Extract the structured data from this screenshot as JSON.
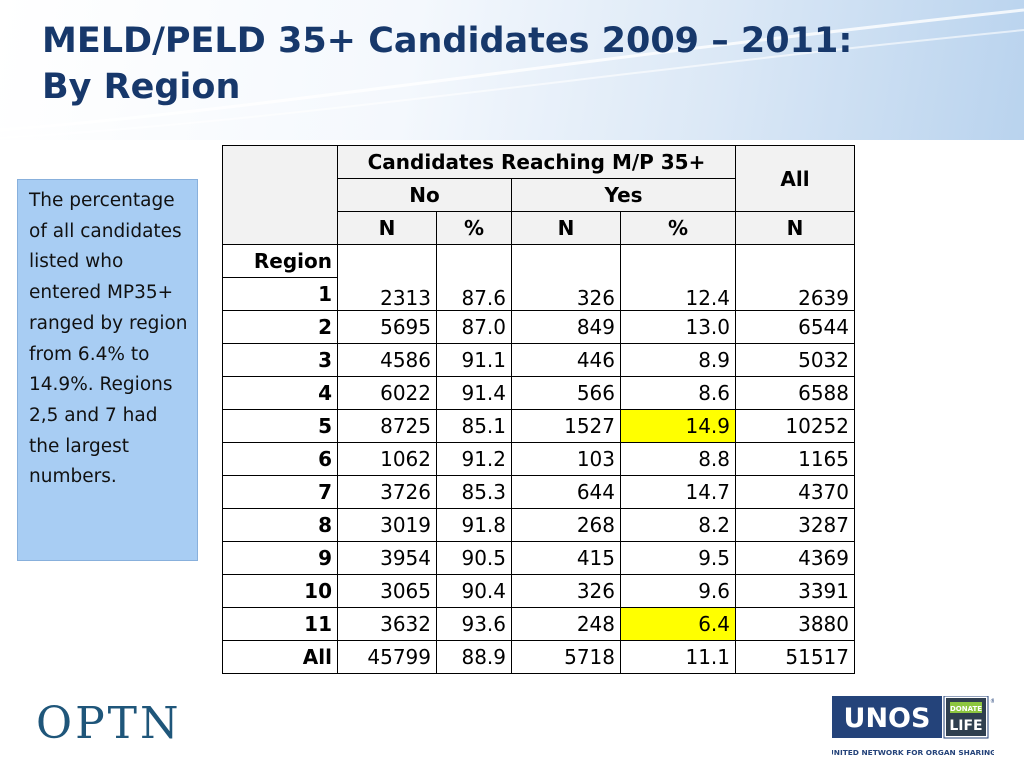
{
  "title": {
    "line1": "MELD/PELD 35+ Candidates 2009 – 2011:",
    "line2": "By Region"
  },
  "note": "The percentage of all candidates listed who entered MP35+ ranged by region from 6.4%  to 14.9%. Regions 2,5 and 7 had the largest numbers.",
  "table": {
    "header_group": "Candidates Reaching M/P 35+",
    "header_all": "All",
    "header_no": "No",
    "header_yes": "Yes",
    "col_n": "N",
    "col_pct": "%",
    "region_label": "Region",
    "rows": [
      {
        "region": "1",
        "no_n": "2313",
        "no_pct": "87.6",
        "yes_n": "326",
        "yes_pct": "12.4",
        "all_n": "2639"
      },
      {
        "region": "2",
        "no_n": "5695",
        "no_pct": "87.0",
        "yes_n": "849",
        "yes_pct": "13.0",
        "all_n": "6544"
      },
      {
        "region": "3",
        "no_n": "4586",
        "no_pct": "91.1",
        "yes_n": "446",
        "yes_pct": "8.9",
        "all_n": "5032"
      },
      {
        "region": "4",
        "no_n": "6022",
        "no_pct": "91.4",
        "yes_n": "566",
        "yes_pct": "8.6",
        "all_n": "6588"
      },
      {
        "region": "5",
        "no_n": "8725",
        "no_pct": "85.1",
        "yes_n": "1527",
        "yes_pct": "14.9",
        "all_n": "10252",
        "highlight": true
      },
      {
        "region": "6",
        "no_n": "1062",
        "no_pct": "91.2",
        "yes_n": "103",
        "yes_pct": "8.8",
        "all_n": "1165"
      },
      {
        "region": "7",
        "no_n": "3726",
        "no_pct": "85.3",
        "yes_n": "644",
        "yes_pct": "14.7",
        "all_n": "4370"
      },
      {
        "region": "8",
        "no_n": "3019",
        "no_pct": "91.8",
        "yes_n": "268",
        "yes_pct": "8.2",
        "all_n": "3287"
      },
      {
        "region": "9",
        "no_n": "3954",
        "no_pct": "90.5",
        "yes_n": "415",
        "yes_pct": "9.5",
        "all_n": "4369"
      },
      {
        "region": "10",
        "no_n": "3065",
        "no_pct": "90.4",
        "yes_n": "326",
        "yes_pct": "9.6",
        "all_n": "3391"
      },
      {
        "region": "11",
        "no_n": "3632",
        "no_pct": "93.6",
        "yes_n": "248",
        "yes_pct": "6.4",
        "all_n": "3880",
        "highlight": true
      },
      {
        "region": "All",
        "no_n": "45799",
        "no_pct": "88.9",
        "yes_n": "5718",
        "yes_pct": "11.1",
        "all_n": "51517"
      }
    ]
  },
  "logos": {
    "optn": "OPTN",
    "unos": "UNOS",
    "donate": "DONATE",
    "life": "LIFE",
    "registered": "®",
    "unos_tagline": "UNITED NETWORK FOR ORGAN SHARING"
  },
  "colors": {
    "title": "#17386b",
    "note_bg": "#a8cdf3",
    "highlight": "#ffff00",
    "optn": "#1f567a",
    "unos_blue": "#24437a"
  }
}
